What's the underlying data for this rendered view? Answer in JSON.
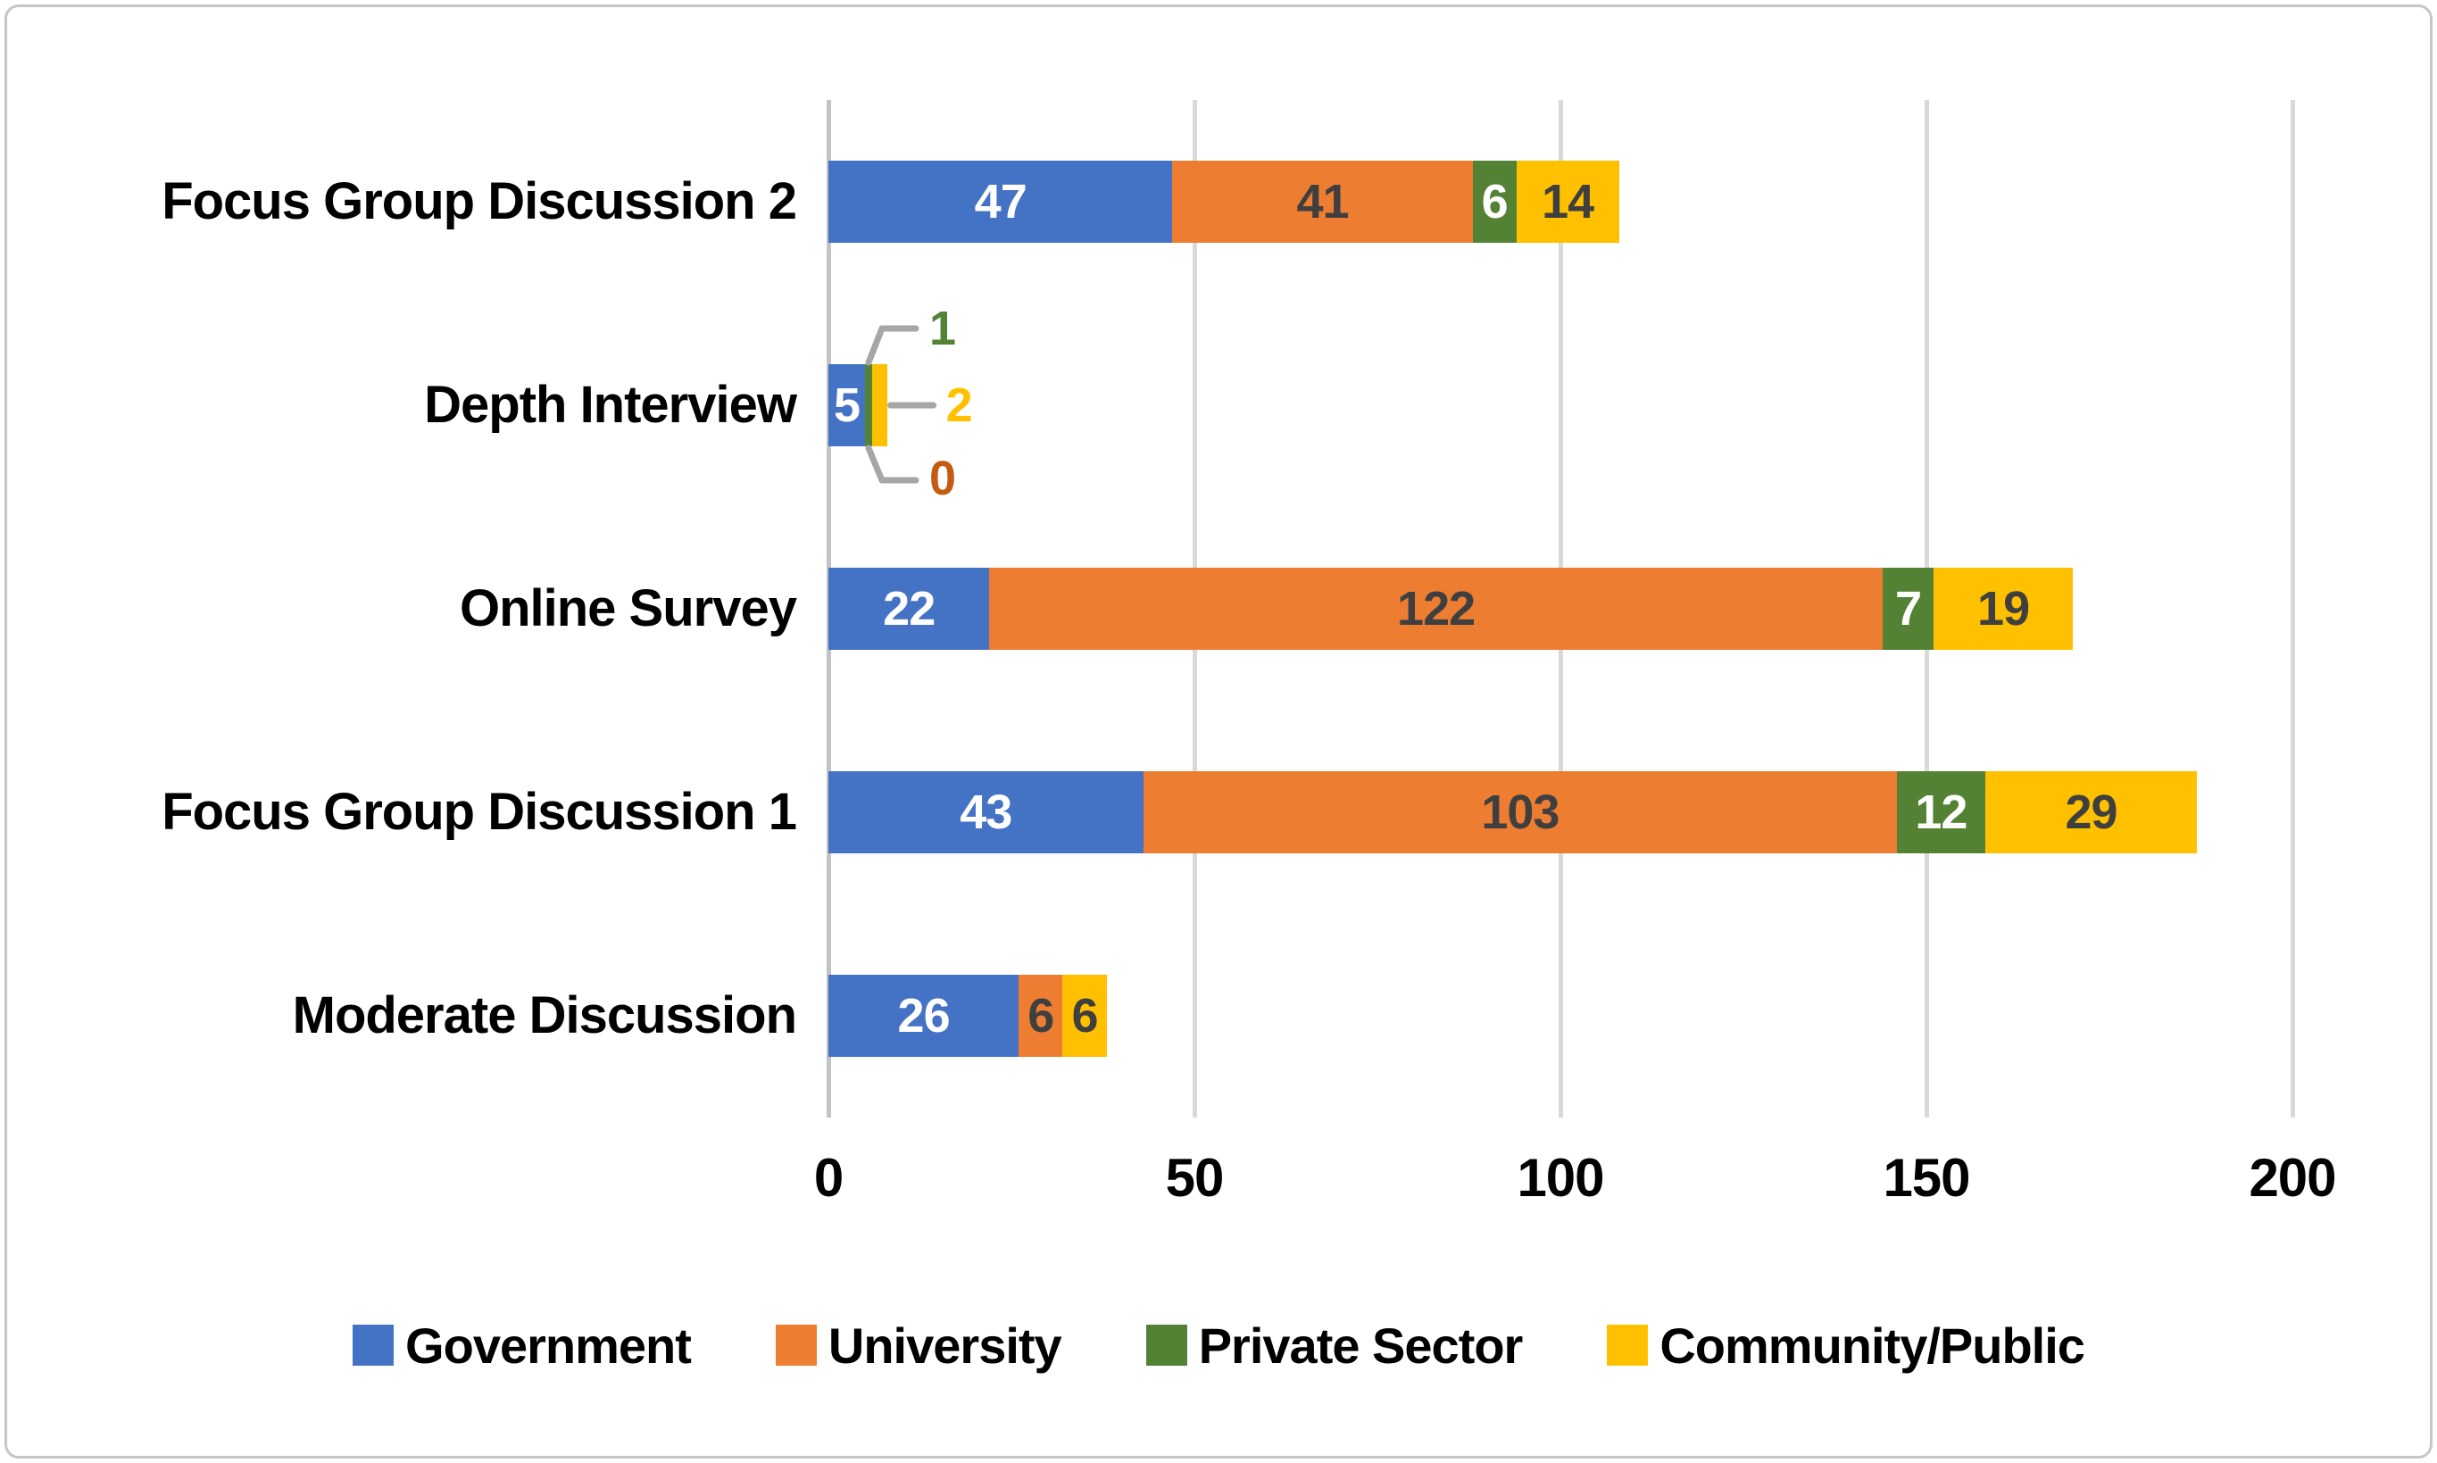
{
  "chart_data": {
    "type": "bar",
    "orientation": "horizontal-stacked",
    "title": "",
    "xlabel": "",
    "ylabel": "",
    "categories": [
      "Focus Group Discussion 2",
      "Depth Interview",
      "Online Survey",
      "Focus Group Discussion 1",
      "Moderate Discussion"
    ],
    "series": [
      {
        "name": "Government",
        "color": "#4472C4",
        "label_color": "#FFFFFF",
        "values": [
          47,
          5,
          22,
          43,
          26
        ]
      },
      {
        "name": "University",
        "color": "#ED7D31",
        "label_color": "#3F3F3F",
        "values": [
          41,
          0,
          122,
          103,
          6
        ]
      },
      {
        "name": "Private Sector",
        "color": "#548235",
        "label_color": "#FFFFFF",
        "values": [
          6,
          1,
          7,
          12,
          0
        ]
      },
      {
        "name": "Community/Public",
        "color": "#FFC000",
        "label_color": "#3F3F3F",
        "values": [
          14,
          2,
          19,
          29,
          6
        ]
      }
    ],
    "xlim": [
      0,
      200
    ],
    "x_ticks": [
      "0",
      "50",
      "100",
      "150",
      "200"
    ],
    "grid": "vertical",
    "legend_position": "bottom",
    "callouts": [
      {
        "category": "Depth Interview",
        "series": "Private Sector",
        "value": "1",
        "color": "#548235"
      },
      {
        "category": "Depth Interview",
        "series": "Community/Public",
        "value": "2",
        "color": "#FFC000"
      },
      {
        "category": "Depth Interview",
        "series": "University",
        "value": "0",
        "color": "#C55A11"
      }
    ],
    "style_colors": {
      "gridline": "#D9D9D9",
      "leader_line": "#A6A6A6",
      "axis_text": "#000000"
    }
  }
}
